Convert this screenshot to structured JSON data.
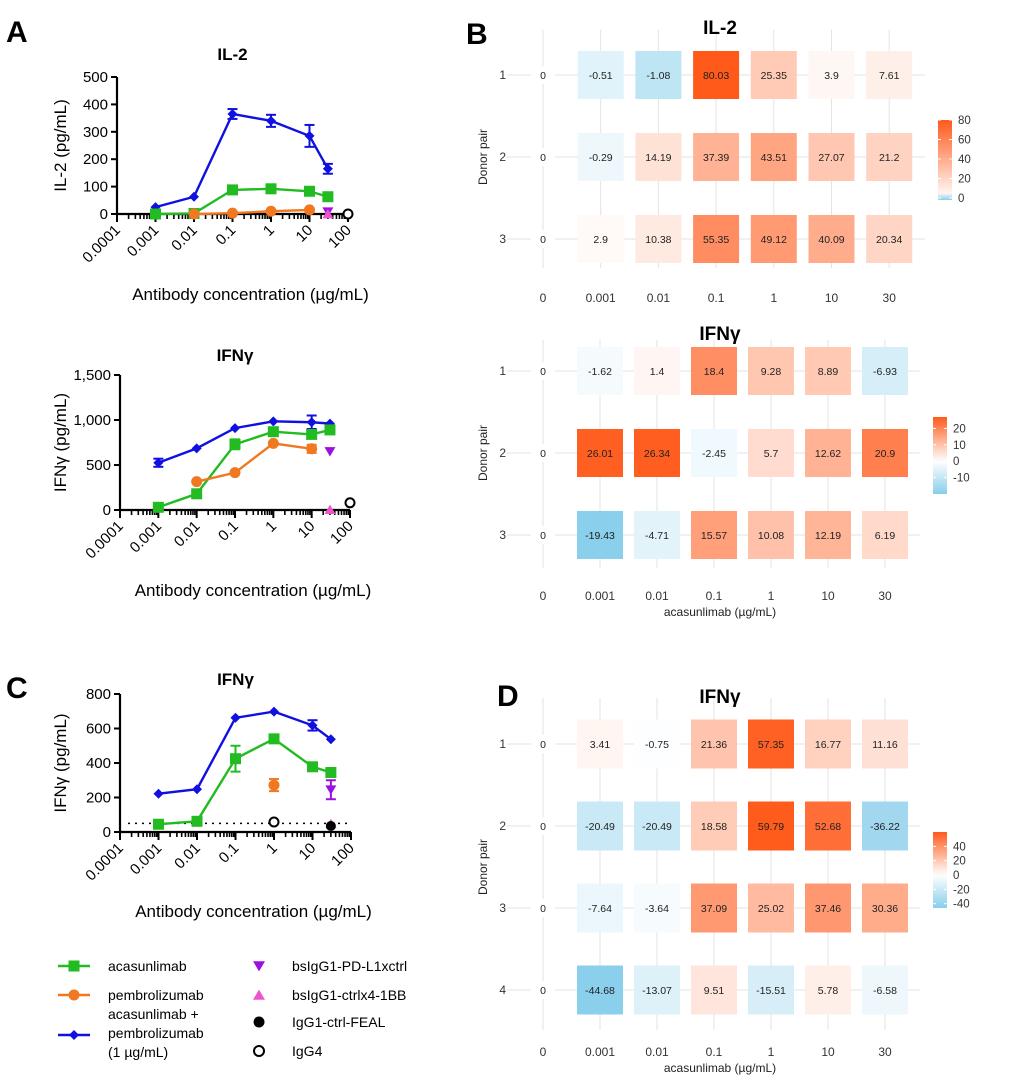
{
  "panels": {
    "A": "A",
    "B": "B",
    "C": "C",
    "D": "D"
  },
  "legend": {
    "items": [
      {
        "label": "acasunlimab",
        "color": "#22bb22",
        "marker": "square-line"
      },
      {
        "label": "pembrolizumab",
        "color": "#f07820",
        "marker": "circle-line"
      },
      {
        "label": "acasunlimab +",
        "label2": "pembrolizumab",
        "label3": "(1 µg/mL)",
        "color": "#1010e0",
        "marker": "diamond-line"
      },
      {
        "label": "bsIgG1-PD-L1xctrl",
        "color": "#9a10e0",
        "marker": "triangle-down"
      },
      {
        "label": "bsIgG1-ctrlx4-1BB",
        "color": "#ee55cc",
        "marker": "triangle-up"
      },
      {
        "label": "IgG1-ctrl-FEAL",
        "color": "#000000",
        "marker": "circle-filled"
      },
      {
        "label": "IgG4",
        "color": "#000000",
        "marker": "circle-open"
      }
    ]
  },
  "chart_data": [
    {
      "id": "A-IL2",
      "type": "line",
      "title": "IL-2",
      "xlabel": "Antibody concentration (µg/mL)",
      "ylabel": "IL-2 (pg/mL)",
      "xscale": "log",
      "xlim": [
        0.0001,
        100
      ],
      "ylim": [
        0,
        500
      ],
      "xticks": [
        "0.0001",
        "0.001",
        "0.01",
        "0.1",
        "1",
        "10",
        "100"
      ],
      "yticks": [
        "0",
        "100",
        "200",
        "300",
        "400",
        "500"
      ],
      "yvals": [
        0,
        100,
        200,
        300,
        400,
        500
      ],
      "series": [
        {
          "name": "acasunlimab + pembrolizumab (1 µg/mL)",
          "marker": "diamond",
          "color": "#1010e0",
          "x": [
            0.001,
            0.01,
            0.1,
            1,
            10,
            30
          ],
          "y": [
            25,
            63,
            365,
            340,
            285,
            165
          ],
          "err": [
            0,
            0,
            18,
            22,
            40,
            18
          ]
        },
        {
          "name": "acasunlimab",
          "marker": "square",
          "color": "#22bb22",
          "x": [
            0.001,
            0.01,
            0.1,
            1,
            10,
            30
          ],
          "y": [
            0,
            2,
            88,
            92,
            83,
            63
          ],
          "err": [
            0,
            0,
            0,
            0,
            0,
            0
          ]
        },
        {
          "name": "pembrolizumab",
          "marker": "circle",
          "color": "#f07820",
          "x": [
            0.01,
            0.1,
            1,
            10
          ],
          "y": [
            0,
            3,
            10,
            15
          ],
          "err": [
            0,
            0,
            0,
            0
          ]
        },
        {
          "name": "bsIgG1-PD-L1xctrl",
          "marker": "triangle-down",
          "color": "#9a10e0",
          "x": [
            30
          ],
          "y": [
            8
          ],
          "err": [
            0
          ]
        },
        {
          "name": "bsIgG1-ctrlx4-1BB",
          "marker": "triangle-up",
          "color": "#ee55cc",
          "x": [
            30
          ],
          "y": [
            0
          ],
          "err": [
            0
          ]
        },
        {
          "name": "IgG4",
          "marker": "circle-open",
          "color": "#000000",
          "x": [
            100
          ],
          "y": [
            0
          ],
          "err": [
            0
          ]
        }
      ]
    },
    {
      "id": "A-IFNg",
      "type": "line",
      "title": "IFNγ",
      "xlabel": "Antibody concentration (µg/mL)",
      "ylabel": "IFNγ (pg/mL)",
      "xscale": "log",
      "xlim": [
        0.0001,
        100
      ],
      "ylim": [
        0,
        1500
      ],
      "xticks": [
        "0.0001",
        "0.001",
        "0.01",
        "0.1",
        "1",
        "10",
        "100"
      ],
      "yticks": [
        "0",
        "500",
        "1,000",
        "1,500"
      ],
      "yvals": [
        0,
        500,
        1000,
        1500
      ],
      "series": [
        {
          "name": "acasunlimab + pembrolizumab (1 µg/mL)",
          "marker": "diamond",
          "color": "#1010e0",
          "x": [
            0.001,
            0.01,
            0.1,
            1,
            10,
            30
          ],
          "y": [
            525,
            685,
            910,
            985,
            975,
            960
          ],
          "err": [
            45,
            0,
            0,
            0,
            75,
            0
          ]
        },
        {
          "name": "acasunlimab",
          "marker": "square",
          "color": "#22bb22",
          "x": [
            0.001,
            0.01,
            0.1,
            1,
            10,
            30
          ],
          "y": [
            30,
            180,
            730,
            870,
            840,
            890
          ],
          "err": [
            0,
            0,
            55,
            0,
            0,
            0
          ]
        },
        {
          "name": "pembrolizumab",
          "marker": "circle",
          "color": "#f07820",
          "x": [
            0.01,
            0.1,
            1,
            10
          ],
          "y": [
            315,
            415,
            740,
            680
          ],
          "err": [
            0,
            0,
            0,
            45
          ]
        },
        {
          "name": "bsIgG1-PD-L1xctrl",
          "marker": "triangle-down",
          "color": "#9a10e0",
          "x": [
            30
          ],
          "y": [
            650
          ],
          "err": [
            0
          ]
        },
        {
          "name": "bsIgG1-ctrlx4-1BB",
          "marker": "triangle-up",
          "color": "#ee55cc",
          "x": [
            30
          ],
          "y": [
            5
          ],
          "err": [
            0
          ]
        },
        {
          "name": "IgG4",
          "marker": "circle-open",
          "color": "#000000",
          "x": [
            100
          ],
          "y": [
            80
          ],
          "err": [
            0
          ]
        }
      ]
    },
    {
      "id": "C-IFNg",
      "type": "line",
      "title": "IFNγ",
      "xlabel": "Antibody concentration (µg/mL)",
      "ylabel": "IFNγ (pg/mL)",
      "xscale": "log",
      "xlim": [
        0.0001,
        100
      ],
      "ylim": [
        0,
        800
      ],
      "xticks": [
        "0.0001",
        "0.001",
        "0.01",
        "0.1",
        "1",
        "10",
        "100"
      ],
      "yticks": [
        "0",
        "200",
        "400",
        "600",
        "800"
      ],
      "yvals": [
        0,
        200,
        400,
        600,
        800
      ],
      "reference_line": 50,
      "series": [
        {
          "name": "acasunlimab + pembrolizumab (1 µg/mL)",
          "marker": "diamond",
          "color": "#1010e0",
          "x": [
            0.001,
            0.01,
            0.1,
            1,
            10,
            30
          ],
          "y": [
            222,
            248,
            662,
            698,
            618,
            538
          ],
          "err": [
            0,
            0,
            0,
            0,
            30,
            0
          ]
        },
        {
          "name": "acasunlimab",
          "marker": "square",
          "color": "#22bb22",
          "x": [
            0.001,
            0.01,
            0.1,
            1,
            10,
            30
          ],
          "y": [
            45,
            62,
            425,
            540,
            378,
            345
          ],
          "err": [
            0,
            0,
            75,
            0,
            0,
            20
          ]
        },
        {
          "name": "pembrolizumab",
          "marker": "circle",
          "color": "#f07820",
          "x": [
            1
          ],
          "y": [
            272
          ],
          "err": [
            35
          ]
        },
        {
          "name": "bsIgG1-PD-L1xctrl",
          "marker": "triangle-down",
          "color": "#9a10e0",
          "x": [
            30
          ],
          "y": [
            245
          ],
          "err": [
            55
          ]
        },
        {
          "name": "bsIgG1-ctrlx4-1BB",
          "marker": "triangle-up",
          "color": "#ee55cc",
          "x": [
            30
          ],
          "y": [
            48
          ],
          "err": [
            0
          ]
        },
        {
          "name": "IgG1-ctrl-FEAL",
          "marker": "circle-filled",
          "color": "#000000",
          "x": [
            30
          ],
          "y": [
            35
          ],
          "err": [
            0
          ]
        },
        {
          "name": "IgG4",
          "marker": "circle-open",
          "color": "#000000",
          "x": [
            1
          ],
          "y": [
            58
          ],
          "err": [
            0
          ]
        }
      ]
    },
    {
      "id": "B-IL2",
      "type": "heatmap",
      "title": "IL-2",
      "xlabel": "",
      "ylabel": "Donor pair",
      "x_categories": [
        "0",
        "0.001",
        "0.01",
        "0.1",
        "1",
        "10",
        "30"
      ],
      "y_categories": [
        "1",
        "2",
        "3"
      ],
      "values": [
        [
          0,
          -0.51,
          -1.08,
          80.03,
          25.35,
          3.9,
          7.61
        ],
        [
          0,
          -0.29,
          14.19,
          37.39,
          43.51,
          27.07,
          21.2
        ],
        [
          0,
          2.9,
          10.38,
          55.35,
          49.12,
          40.09,
          20.34
        ]
      ],
      "colorbar": {
        "ticks": [
          "80",
          "60",
          "40",
          "20",
          "0"
        ],
        "tick_values": [
          80,
          60,
          40,
          20,
          0
        ],
        "min": -2,
        "max": 80,
        "low_color": "#87ceeb",
        "mid_color": "#ffffff",
        "high_color": "#ff5a1a"
      }
    },
    {
      "id": "B-IFNg",
      "type": "heatmap",
      "title": "IFNγ",
      "xlabel": "acasunlimab (µg/mL)",
      "ylabel": "Donor pair",
      "x_categories": [
        "0",
        "0.001",
        "0.01",
        "0.1",
        "1",
        "10",
        "30"
      ],
      "y_categories": [
        "1",
        "2",
        "3"
      ],
      "values": [
        [
          0,
          -1.62,
          1.4,
          18.4,
          9.28,
          8.89,
          -6.93
        ],
        [
          0,
          26.01,
          26.34,
          -2.45,
          5.7,
          12.62,
          20.9
        ],
        [
          0,
          -19.43,
          -4.71,
          15.57,
          10.08,
          12.19,
          6.19
        ]
      ],
      "colorbar": {
        "ticks": [
          "20",
          "10",
          "0",
          "-10"
        ],
        "tick_values": [
          20,
          10,
          0,
          -10
        ],
        "min": -20,
        "max": 27,
        "low_color": "#87ceeb",
        "mid_color": "#ffffff",
        "high_color": "#ff5a1a"
      }
    },
    {
      "id": "D-IFNg",
      "type": "heatmap",
      "title": "IFNγ",
      "xlabel": "acasunlimab (µg/mL)",
      "ylabel": "Donor pair",
      "x_categories": [
        "0",
        "0.001",
        "0.01",
        "0.1",
        "1",
        "10",
        "30"
      ],
      "y_categories": [
        "1",
        "2",
        "3",
        "4"
      ],
      "values": [
        [
          0,
          3.41,
          -0.75,
          21.36,
          57.35,
          16.77,
          11.16
        ],
        [
          0,
          -20.49,
          -20.49,
          18.58,
          59.79,
          52.68,
          -36.22
        ],
        [
          0,
          -7.64,
          -3.64,
          37.09,
          25.02,
          37.46,
          30.36
        ],
        [
          0,
          -44.68,
          -13.07,
          9.51,
          -15.51,
          5.78,
          -6.58
        ]
      ],
      "colorbar": {
        "ticks": [
          "40",
          "20",
          "0",
          "-20",
          "-40"
        ],
        "tick_values": [
          40,
          20,
          0,
          -20,
          -40
        ],
        "min": -46,
        "max": 60,
        "low_color": "#87ceeb",
        "mid_color": "#ffffff",
        "high_color": "#ff5a1a"
      }
    }
  ]
}
